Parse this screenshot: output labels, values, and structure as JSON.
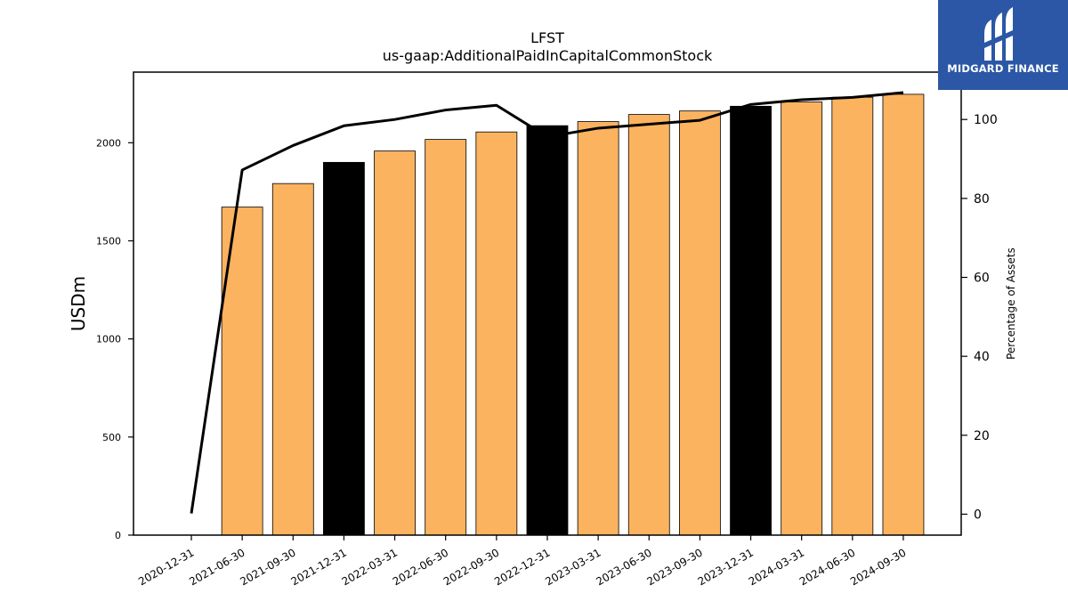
{
  "chart_data": {
    "type": "bar",
    "title": "LFST",
    "subtitle": "us-gaap:AdditionalPaidInCapitalCommonStock",
    "ylabel": "USDm",
    "y2label": "Percentage of Assets",
    "categories": [
      "2020-12-31",
      "2021-06-30",
      "2021-09-30",
      "2021-12-31",
      "2022-03-31",
      "2022-06-30",
      "2022-09-30",
      "2022-12-31",
      "2023-03-31",
      "2023-06-30",
      "2023-09-30",
      "2023-12-31",
      "2024-03-31",
      "2024-06-30",
      "2024-09-30"
    ],
    "series": [
      {
        "type": "bar",
        "axis": "left",
        "values": [
          0,
          1672,
          1792,
          1900,
          1958,
          2017,
          2055,
          2087,
          2108,
          2144,
          2162,
          2186,
          2208,
          2232,
          2247
        ],
        "colors": [
          "#fbb360",
          "#fbb360",
          "#fbb360",
          "#000000",
          "#fbb360",
          "#fbb360",
          "#fbb360",
          "#000000",
          "#fbb360",
          "#fbb360",
          "#fbb360",
          "#000000",
          "#fbb360",
          "#fbb360",
          "#fbb360"
        ]
      },
      {
        "type": "line",
        "axis": "right",
        "color": "#000000",
        "values": [
          0.2,
          87.2,
          93.4,
          98.4,
          100.0,
          102.4,
          103.6,
          95.6,
          97.8,
          98.8,
          99.8,
          103.8,
          105.0,
          105.6,
          106.8
        ]
      }
    ],
    "ylim": [
      0,
      2360
    ],
    "y2lim": [
      -5.3,
      112
    ],
    "yticks": [
      0,
      500,
      1000,
      1500,
      2000
    ],
    "y2ticks": [
      0,
      20,
      40,
      60,
      80,
      100
    ]
  },
  "logo": {
    "text": "MIDGARD FINANCE",
    "background": "#2b57a6"
  }
}
